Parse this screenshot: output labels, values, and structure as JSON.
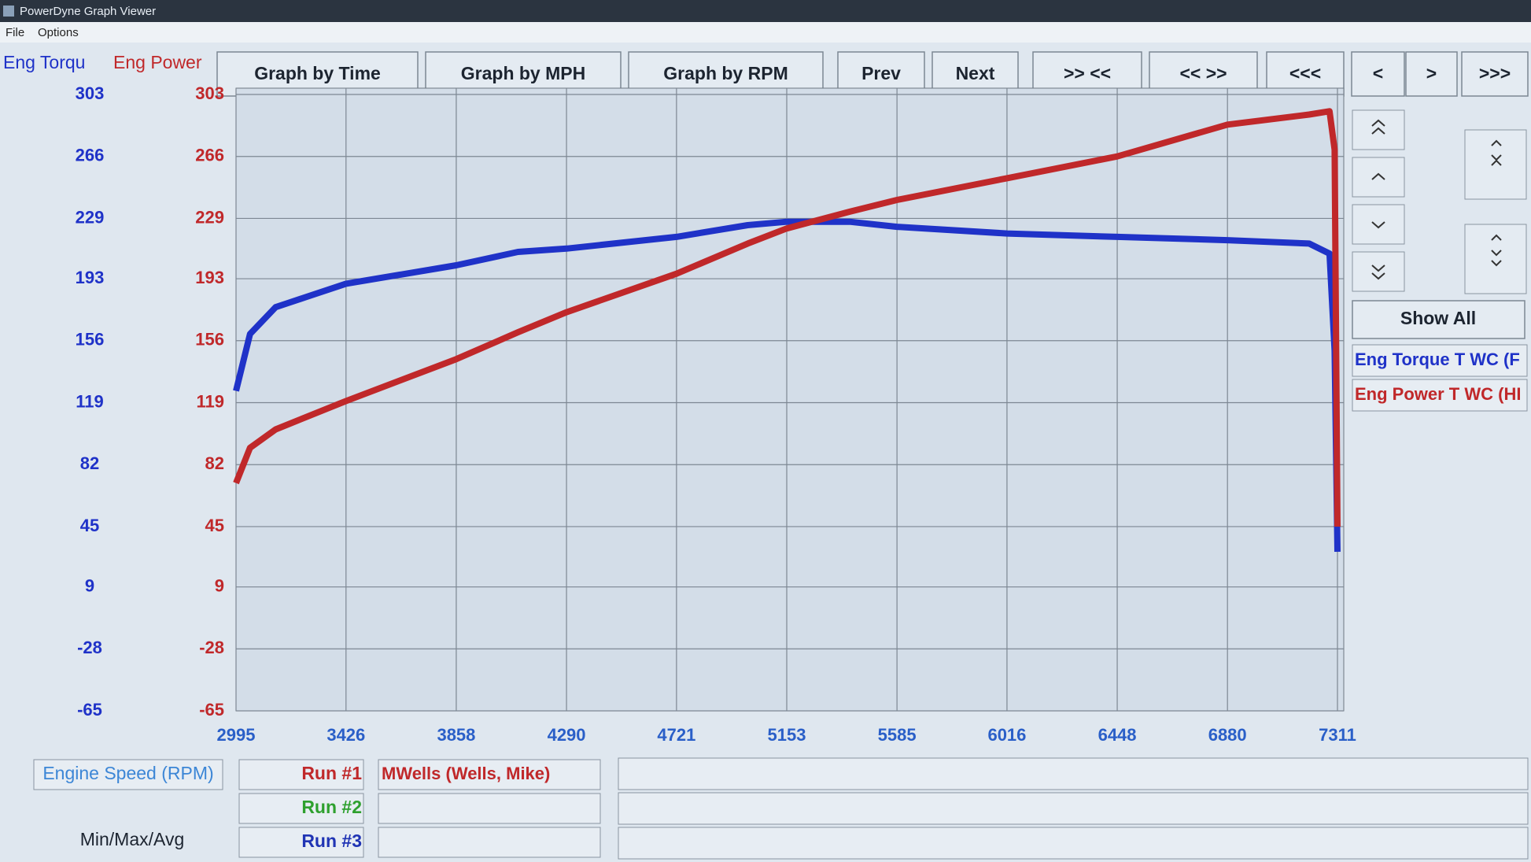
{
  "window": {
    "title": "PowerDyne Graph Viewer",
    "menu": [
      "File",
      "Options"
    ]
  },
  "toolbar": {
    "buttons": [
      "Graph by Time",
      "Graph by MPH",
      "Graph by RPM",
      "Prev",
      "Next",
      ">> <<",
      "<< >>",
      "<<<",
      "<",
      ">",
      ">>>"
    ]
  },
  "side_panel": {
    "show_all": "Show All"
  },
  "runs": [
    {
      "label": "Run #1",
      "driver": "MWells (Wells, Mike)",
      "color": "#c0282a"
    },
    {
      "label": "Run #2",
      "color": "#2ea02e"
    },
    {
      "label": "Run #3",
      "color": "#2034b4"
    }
  ],
  "stats_label": "Min/Max/Avg",
  "chart_data": {
    "type": "line",
    "x_label": "Engine Speed (RPM)",
    "y_label": "Eng Torqu",
    "y2_label": "Eng Power",
    "x": [
      2995,
      3050,
      3150,
      3426,
      3858,
      4100,
      4290,
      4721,
      5000,
      5153,
      5400,
      5585,
      6016,
      6448,
      6880,
      7200,
      7280,
      7300,
      7311
    ],
    "series": [
      {
        "name": "Eng Torque T WC (F",
        "color": "#1f32c8",
        "values": [
          126,
          160,
          176,
          190,
          201,
          209,
          211,
          218,
          225,
          227,
          227,
          224,
          220,
          218,
          216,
          214,
          208,
          150,
          30
        ]
      },
      {
        "name": "Eng Power T WC (HI",
        "color": "#c0282a",
        "axis": "y2",
        "values": [
          71,
          92,
          103,
          120,
          145,
          161,
          173,
          196,
          214,
          223,
          233,
          240,
          253,
          266,
          285,
          291,
          293,
          270,
          45
        ]
      }
    ],
    "xlim": [
      2995,
      7311
    ],
    "xticks": [
      2995,
      3426,
      3858,
      4290,
      4721,
      5153,
      5585,
      6016,
      6448,
      6880,
      7311
    ],
    "ylim": [
      -65,
      303
    ],
    "yticks": [
      303,
      266,
      229,
      193,
      156,
      119,
      82,
      45,
      9,
      -28,
      -65
    ],
    "y2lim": [
      -65,
      303
    ],
    "y2ticks": [
      303,
      266,
      229,
      193,
      156,
      119,
      82,
      45,
      9,
      -28,
      -65
    ],
    "grid": true
  }
}
